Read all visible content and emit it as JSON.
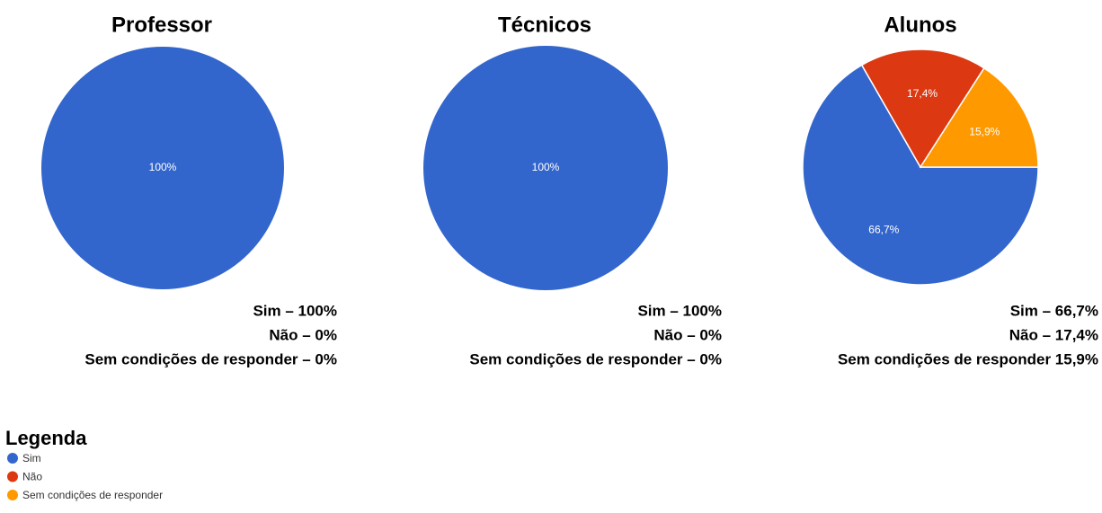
{
  "chart_data": [
    {
      "type": "pie",
      "title": "Professor",
      "categories": [
        "Sim",
        "Não",
        "Sem condições de responder"
      ],
      "values": [
        100,
        0,
        0
      ],
      "value_labels": [
        "100%",
        null,
        null
      ],
      "colors": [
        "#3366cc",
        "#dc3912",
        "#ff9900"
      ],
      "annotations": [
        "Sim – 100%",
        "Não – 0%",
        "Sem condições de responder – 0%"
      ]
    },
    {
      "type": "pie",
      "title": "Técnicos",
      "categories": [
        "Sim",
        "Não",
        "Sem condições de responder"
      ],
      "values": [
        100,
        0,
        0
      ],
      "value_labels": [
        "100%",
        null,
        null
      ],
      "colors": [
        "#3366cc",
        "#dc3912",
        "#ff9900"
      ],
      "annotations": [
        "Sim – 100%",
        "Não – 0%",
        "Sem condições de responder – 0%"
      ]
    },
    {
      "type": "pie",
      "title": "Alunos",
      "categories": [
        "Sim",
        "Não",
        "Sem condições de responder"
      ],
      "values": [
        66.7,
        17.4,
        15.9
      ],
      "value_labels": [
        "66,7%",
        "17,4%",
        "15,9%"
      ],
      "colors": [
        "#3366cc",
        "#dc3912",
        "#ff9900"
      ],
      "annotations": [
        "Sim – 66,7%",
        "Não – 17,4%",
        "Sem condições de responder 15,9%"
      ]
    }
  ],
  "legend_title": "Legenda"
}
